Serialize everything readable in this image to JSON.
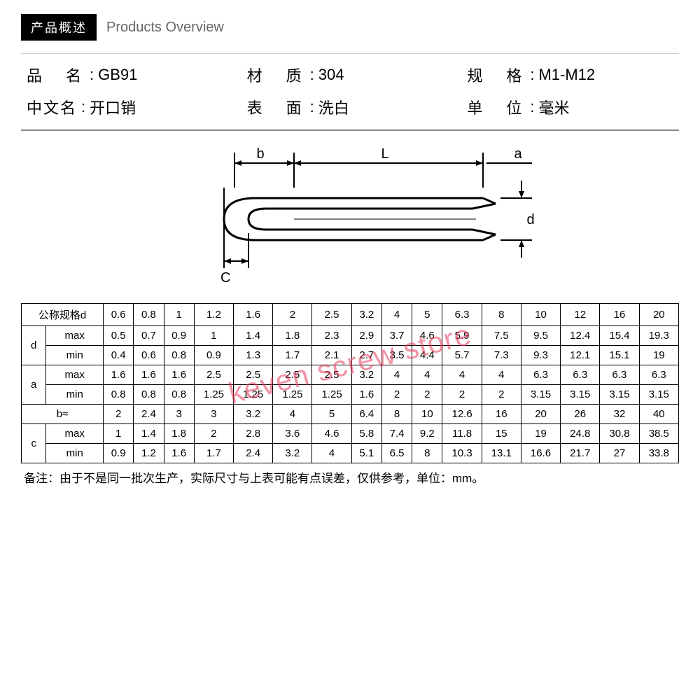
{
  "header": {
    "box_label": "产品概述",
    "title": "Products Overview"
  },
  "meta": {
    "r1c1_label": "品　名",
    "r1c1_value": "GB91",
    "r1c2_label": "材　质",
    "r1c2_value": "304",
    "r1c3_label": "规　格",
    "r1c3_value": "M1-M12",
    "r2c1_label": "中文名",
    "r2c1_value": "开口销",
    "r2c2_label": "表　面",
    "r2c2_value": "洗白",
    "r2c3_label": "单　位",
    "r2c3_value": "毫米"
  },
  "diagram": {
    "label_b": "b",
    "label_L": "L",
    "label_a": "a",
    "label_d": "d",
    "label_C": "C"
  },
  "watermark": "keven screw store",
  "table": {
    "header_label": "公称规格d",
    "sizes": [
      "0.6",
      "0.8",
      "1",
      "1.2",
      "1.6",
      "2",
      "2.5",
      "3.2",
      "4",
      "5",
      "6.3",
      "8",
      "10",
      "12",
      "16",
      "20"
    ],
    "groups": [
      {
        "name": "d",
        "rows": [
          {
            "label": "max",
            "vals": [
              "0.5",
              "0.7",
              "0.9",
              "1",
              "1.4",
              "1.8",
              "2.3",
              "2.9",
              "3.7",
              "4.6",
              "5.9",
              "7.5",
              "9.5",
              "12.4",
              "15.4",
              "19.3"
            ]
          },
          {
            "label": "min",
            "vals": [
              "0.4",
              "0.6",
              "0.8",
              "0.9",
              "1.3",
              "1.7",
              "2.1",
              "2.7",
              "3.5",
              "4.4",
              "5.7",
              "7.3",
              "9.3",
              "12.1",
              "15.1",
              "19"
            ]
          }
        ]
      },
      {
        "name": "a",
        "rows": [
          {
            "label": "max",
            "vals": [
              "1.6",
              "1.6",
              "1.6",
              "2.5",
              "2.5",
              "2.5",
              "2.5",
              "3.2",
              "4",
              "4",
              "4",
              "4",
              "6.3",
              "6.3",
              "6.3",
              "6.3"
            ]
          },
          {
            "label": "min",
            "vals": [
              "0.8",
              "0.8",
              "0.8",
              "1.25",
              "1.25",
              "1.25",
              "1.25",
              "1.6",
              "2",
              "2",
              "2",
              "2",
              "3.15",
              "3.15",
              "3.15",
              "3.15"
            ]
          }
        ]
      }
    ],
    "b_row": {
      "label": "b≈",
      "vals": [
        "2",
        "2.4",
        "3",
        "3",
        "3.2",
        "4",
        "5",
        "6.4",
        "8",
        "10",
        "12.6",
        "16",
        "20",
        "26",
        "32",
        "40"
      ]
    },
    "c_group": {
      "name": "c",
      "rows": [
        {
          "label": "max",
          "vals": [
            "1",
            "1.4",
            "1.8",
            "2",
            "2.8",
            "3.6",
            "4.6",
            "5.8",
            "7.4",
            "9.2",
            "11.8",
            "15",
            "19",
            "24.8",
            "30.8",
            "38.5"
          ]
        },
        {
          "label": "min",
          "vals": [
            "0.9",
            "1.2",
            "1.6",
            "1.7",
            "2.4",
            "3.2",
            "4",
            "5.1",
            "6.5",
            "8",
            "10.3",
            "13.1",
            "16.6",
            "21.7",
            "27",
            "33.8"
          ]
        }
      ]
    }
  },
  "note": "备注：由于不是同一批次生产，实际尺寸与上表可能有点误差，仅供参考，单位：mm。",
  "colors": {
    "watermark": "#e83a5a",
    "border": "#000000",
    "text": "#000000",
    "subtitle": "#666666"
  }
}
